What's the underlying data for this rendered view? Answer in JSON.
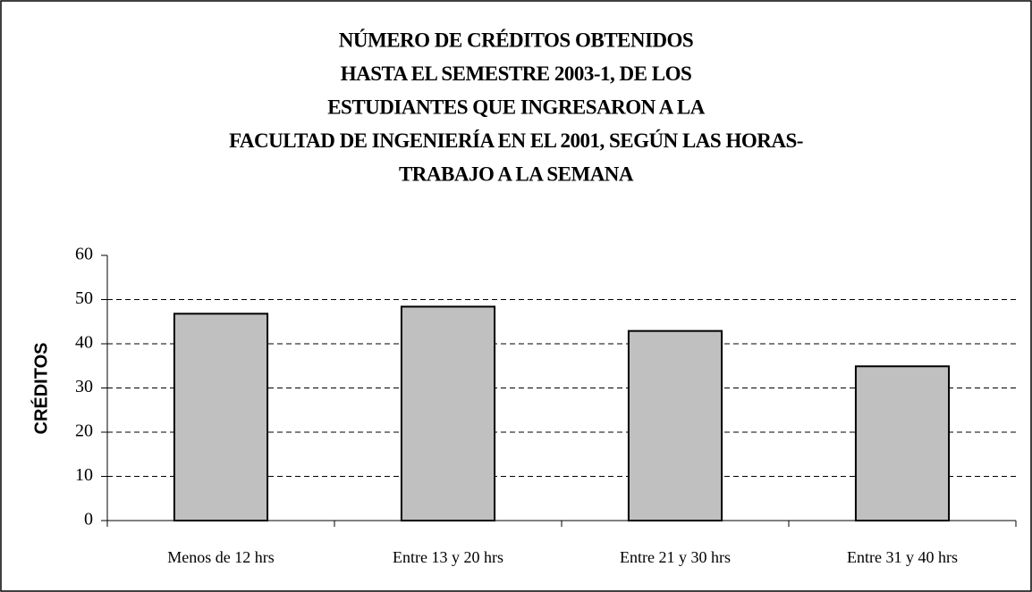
{
  "chart_data": {
    "type": "bar",
    "title": [
      "NÚMERO DE CRÉDITOS OBTENIDOS",
      "HASTA EL SEMESTRE 2003-1, DE LOS",
      "ESTUDIANTES QUE INGRESARON A LA",
      "FACULTAD DE INGENIERÍA EN EL 2001, SEGÚN LAS HORAS-",
      "TRABAJO A LA SEMANA"
    ],
    "y_label": "CRÉDITOS",
    "categories": [
      "Menos de 12 hrs",
      "Entre 13 y 20 hrs",
      "Entre 21 y 30 hrs",
      "Entre 31 y 40 hrs"
    ],
    "values": [
      46.8,
      48.4,
      42.9,
      34.9
    ],
    "color": "#c0c0c0",
    "ylim": [
      0,
      60
    ],
    "yticks": [
      0,
      10,
      20,
      30,
      40,
      50,
      60
    ],
    "grid": true
  }
}
